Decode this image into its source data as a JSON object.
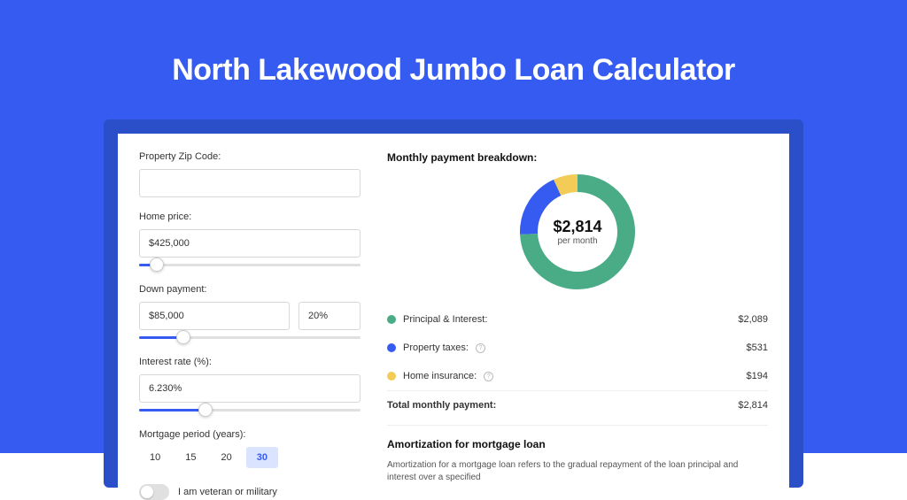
{
  "title": "North Lakewood Jumbo Loan Calculator",
  "background_color": "#365bf0",
  "panel_shadow_color": "#2a4fc9",
  "panel_bg": "#ffffff",
  "form": {
    "zip": {
      "label": "Property Zip Code:",
      "value": ""
    },
    "home_price": {
      "label": "Home price:",
      "value": "$425,000",
      "slider_pct": 8
    },
    "down_payment": {
      "label": "Down payment:",
      "amount": "$85,000",
      "pct": "20%",
      "slider_pct": 20
    },
    "interest": {
      "label": "Interest rate (%):",
      "value": "6.230%",
      "slider_pct": 30
    },
    "period": {
      "label": "Mortgage period (years):",
      "options": [
        "10",
        "15",
        "20",
        "30"
      ],
      "selected": "30"
    },
    "veteran": {
      "label": "I am veteran or military",
      "on": false
    }
  },
  "breakdown": {
    "title": "Monthly payment breakdown:",
    "center_amount": "$2,814",
    "center_sub": "per month",
    "donut": {
      "slices": [
        {
          "label": "Principal & Interest:",
          "value": "$2,089",
          "color": "#4aab87",
          "pct": 74.2,
          "info": false
        },
        {
          "label": "Property taxes:",
          "value": "$531",
          "color": "#365bf0",
          "pct": 18.9,
          "info": true
        },
        {
          "label": "Home insurance:",
          "value": "$194",
          "color": "#f2cc56",
          "pct": 6.9,
          "info": true
        }
      ],
      "stroke_width": 20,
      "radius": 55,
      "bg": "#ffffff"
    },
    "total": {
      "label": "Total monthly payment:",
      "value": "$2,814"
    }
  },
  "amortization": {
    "title": "Amortization for mortgage loan",
    "text": "Amortization for a mortgage loan refers to the gradual repayment of the loan principal and interest over a specified"
  }
}
